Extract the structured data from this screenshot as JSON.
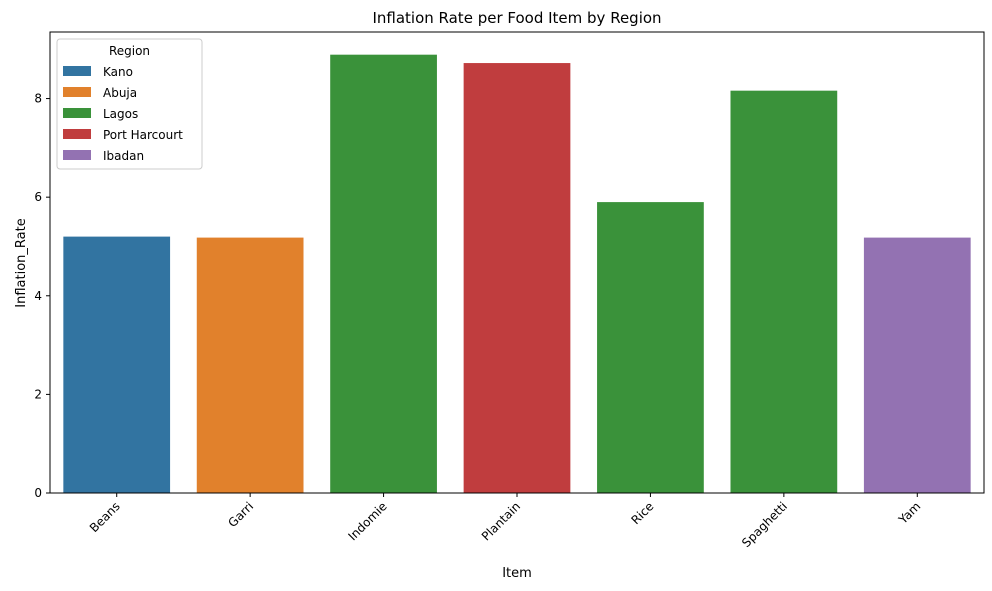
{
  "chart_data": {
    "type": "bar",
    "title": "Inflation Rate per Food Item by Region",
    "xlabel": "Item",
    "ylabel": "Inflation_Rate",
    "ylim": [
      0,
      9.35
    ],
    "yticks": [
      0,
      2,
      4,
      6,
      8
    ],
    "ytick_labels": [
      "0",
      "2",
      "4",
      "6",
      "8"
    ],
    "grid": false,
    "categories": [
      "Beans",
      "Garri",
      "Indomie",
      "Plantain",
      "Rice",
      "Spaghetti",
      "Yam"
    ],
    "values": [
      5.2,
      5.18,
      8.89,
      8.72,
      5.9,
      8.16,
      5.18
    ],
    "bar_regions": [
      "Kano",
      "Abuja",
      "Lagos",
      "Port Harcourt",
      "Lagos",
      "Lagos",
      "Ibadan"
    ],
    "legend": {
      "title": "Region",
      "placement": "upper-left",
      "entries": [
        {
          "name": "Kano",
          "color": "#3274a1"
        },
        {
          "name": "Abuja",
          "color": "#e1812c"
        },
        {
          "name": "Lagos",
          "color": "#3a923a"
        },
        {
          "name": "Port Harcourt",
          "color": "#c03d3e"
        },
        {
          "name": "Ibadan",
          "color": "#9372b2"
        }
      ]
    }
  }
}
